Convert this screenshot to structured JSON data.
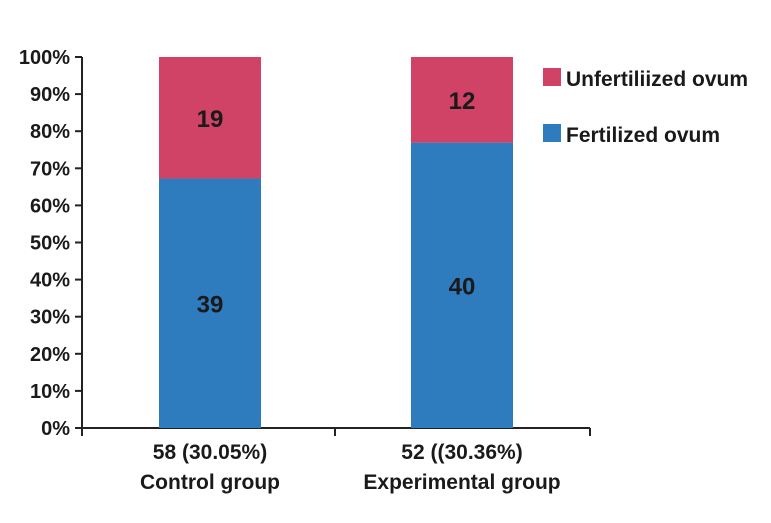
{
  "chart_data": {
    "type": "bar",
    "stacked": true,
    "percent_stacked": true,
    "categories": [
      {
        "line1": "58 (30.05%)",
        "line2": "Control group"
      },
      {
        "line1": "52 ((30.36%)",
        "line2": "Experimental group"
      }
    ],
    "series": [
      {
        "name": "Fertilized ovum",
        "color": "#2e7bbd",
        "values": [
          39,
          40
        ]
      },
      {
        "name": "Unfertiliized ovum",
        "color": "#d04266",
        "values": [
          19,
          12
        ]
      }
    ],
    "yticks": [
      "0%",
      "10%",
      "20%",
      "30%",
      "40%",
      "50%",
      "60%",
      "70%",
      "80%",
      "90%",
      "100%"
    ],
    "ylim": [
      0,
      100
    ],
    "legend_position": "top-right",
    "grid": false
  }
}
